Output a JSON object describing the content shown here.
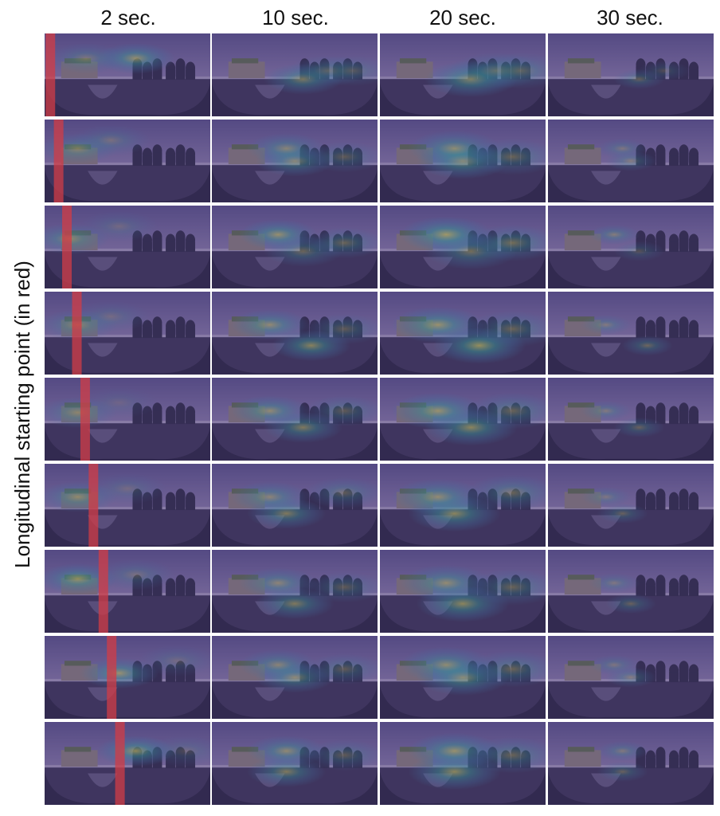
{
  "figure": {
    "column_headers": [
      "2 sec.",
      "10 sec.",
      "20 sec.",
      "30 sec."
    ],
    "y_axis_label": "Longitudinal starting point (in red)"
  },
  "panels": {
    "rows": 9,
    "columns": 4,
    "description_colors": {
      "overlay_tint": "#4a3f7a",
      "heat_low": "#3b8bb5",
      "heat_mid": "#2fb8a0",
      "heat_high": "#e8e14a",
      "start_marker": "#d23c46"
    },
    "start_marker_fraction": [
      0.03,
      0.08,
      0.13,
      0.19,
      0.24,
      0.29,
      0.35,
      0.4,
      0.45
    ],
    "heat_centers": [
      [
        [
          0.55,
          0.3,
          0.9
        ],
        [
          0.25,
          0.3,
          0.5
        ]
      ],
      [
        [
          0.2,
          0.35,
          0.6
        ],
        [
          0.4,
          0.25,
          0.4
        ]
      ],
      [
        [
          0.15,
          0.4,
          0.7
        ],
        [
          0.45,
          0.25,
          0.3
        ]
      ],
      [
        [
          0.2,
          0.4,
          0.6
        ],
        [
          0.4,
          0.3,
          0.3
        ]
      ],
      [
        [
          0.2,
          0.42,
          0.6
        ],
        [
          0.45,
          0.3,
          0.2
        ]
      ],
      [
        [
          0.2,
          0.4,
          0.7
        ],
        [
          0.5,
          0.3,
          0.3
        ]
      ],
      [
        [
          0.2,
          0.35,
          0.9
        ],
        [
          0.55,
          0.3,
          0.4
        ]
      ],
      [
        [
          0.45,
          0.45,
          0.9
        ],
        [
          0.8,
          0.3,
          0.3
        ]
      ],
      [
        [
          0.55,
          0.35,
          1.0
        ],
        [
          0.85,
          0.35,
          0.3
        ]
      ]
    ],
    "heat_later": [
      [
        [
          0.55,
          0.55,
          0.8
        ],
        [
          0.7,
          0.45,
          0.5
        ],
        [
          0.85,
          0.45,
          0.4
        ]
      ],
      [
        [
          0.5,
          0.5,
          0.8
        ],
        [
          0.45,
          0.35,
          0.7
        ],
        [
          0.8,
          0.45,
          0.5
        ]
      ],
      [
        [
          0.55,
          0.55,
          0.6
        ],
        [
          0.4,
          0.35,
          0.9
        ],
        [
          0.8,
          0.45,
          0.6
        ]
      ],
      [
        [
          0.6,
          0.65,
          0.9
        ],
        [
          0.35,
          0.4,
          0.8
        ],
        [
          0.8,
          0.45,
          0.5
        ]
      ],
      [
        [
          0.55,
          0.6,
          0.8
        ],
        [
          0.35,
          0.4,
          0.8
        ],
        [
          0.8,
          0.4,
          0.5
        ]
      ],
      [
        [
          0.45,
          0.6,
          0.8
        ],
        [
          0.35,
          0.4,
          0.7
        ],
        [
          0.8,
          0.35,
          0.5
        ]
      ],
      [
        [
          0.5,
          0.65,
          0.8
        ],
        [
          0.4,
          0.4,
          0.7
        ],
        [
          0.8,
          0.45,
          0.5
        ]
      ],
      [
        [
          0.5,
          0.5,
          0.8
        ],
        [
          0.4,
          0.35,
          0.7
        ],
        [
          0.8,
          0.4,
          0.5
        ]
      ],
      [
        [
          0.45,
          0.6,
          0.8
        ],
        [
          0.45,
          0.35,
          0.8
        ],
        [
          0.8,
          0.4,
          0.5
        ]
      ]
    ]
  }
}
